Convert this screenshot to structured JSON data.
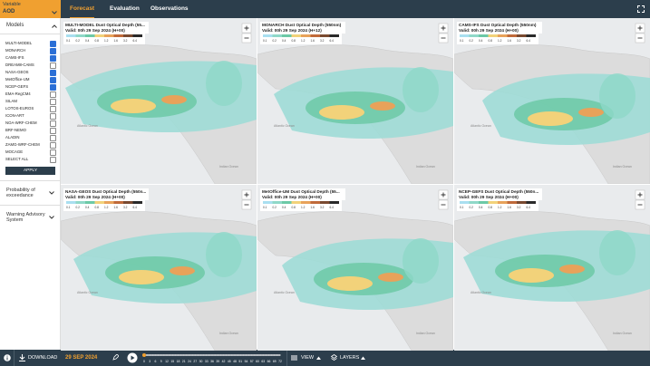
{
  "header": {
    "variable_label": "Variable",
    "variable_value": "AOD",
    "tabs": [
      "Forecast",
      "Evaluation",
      "Observations"
    ]
  },
  "sidebar": {
    "models_title": "Models",
    "models": [
      {
        "label": "MULTI-MODEL",
        "checked": true
      },
      {
        "label": "MONARCH",
        "checked": true
      },
      {
        "label": "CAMS-IFS",
        "checked": true
      },
      {
        "label": "DREAM8-CAMS",
        "checked": false
      },
      {
        "label": "NASA-GEOS",
        "checked": true
      },
      {
        "label": "MetOffice-UM",
        "checked": true
      },
      {
        "label": "NCEP-GEFS",
        "checked": true
      },
      {
        "label": "EMA-RegCM4",
        "checked": false
      },
      {
        "label": "SILAM",
        "checked": false
      },
      {
        "label": "LOTOS-EUROS",
        "checked": false
      },
      {
        "label": "ICON-ART",
        "checked": false
      },
      {
        "label": "NOA-WRF-CHEM",
        "checked": false
      },
      {
        "label": "BRF-NEMO",
        "checked": false
      },
      {
        "label": "ALADIN",
        "checked": false
      },
      {
        "label": "ZAMG-WRF-CHEM",
        "checked": false
      },
      {
        "label": "MOCAGE",
        "checked": false
      },
      {
        "label": "SELECT ALL",
        "checked": false
      }
    ],
    "apply": "APPLY",
    "sections": [
      "Probability of exceedance",
      "Warning Advisory System"
    ]
  },
  "maps": [
    {
      "title": "MULTI-MODEL Dust Optical Depth (55...",
      "valid": "Valid: 00h 29 Sep 2024 (H+00)"
    },
    {
      "title": "MONARCH Dust Optical Depth (550nm)",
      "valid": "Valid: 00h 29 Sep 2024 (H+12)"
    },
    {
      "title": "CAMS-IFS Dust Optical Depth (550nm)",
      "valid": "Valid: 00h 29 Sep 2024 (H+00)"
    },
    {
      "title": "NASA-GEOS Dust Optical Depth (550n...",
      "valid": "Valid: 00h 29 Sep 2024 (H+00)"
    },
    {
      "title": "MetOffice-UM Dust Optical Depth (55...",
      "valid": "Valid: 00h 29 Sep 2024 (H+00)"
    },
    {
      "title": "NCEP-GEFS Dust Optical Depth (550n...",
      "valid": "Valid: 00h 29 Sep 2024 (H+00)"
    }
  ],
  "map_labels": [
    "Atlantic Ocean",
    "Indian Ocean"
  ],
  "legend_ticks": [
    "0.1",
    "0.2",
    "0.4",
    "0.8",
    "1.2",
    "1.6",
    "3.2",
    "6.4"
  ],
  "footer": {
    "download": "DOWNLOAD",
    "date": "29 SEP 2024",
    "timeline": [
      0,
      3,
      6,
      9,
      12,
      15,
      18,
      21,
      24,
      27,
      30,
      33,
      36,
      39,
      42,
      45,
      48,
      51,
      54,
      57,
      60,
      63,
      66,
      69,
      72
    ],
    "view": "VIEW",
    "layers": "LAYERS"
  }
}
